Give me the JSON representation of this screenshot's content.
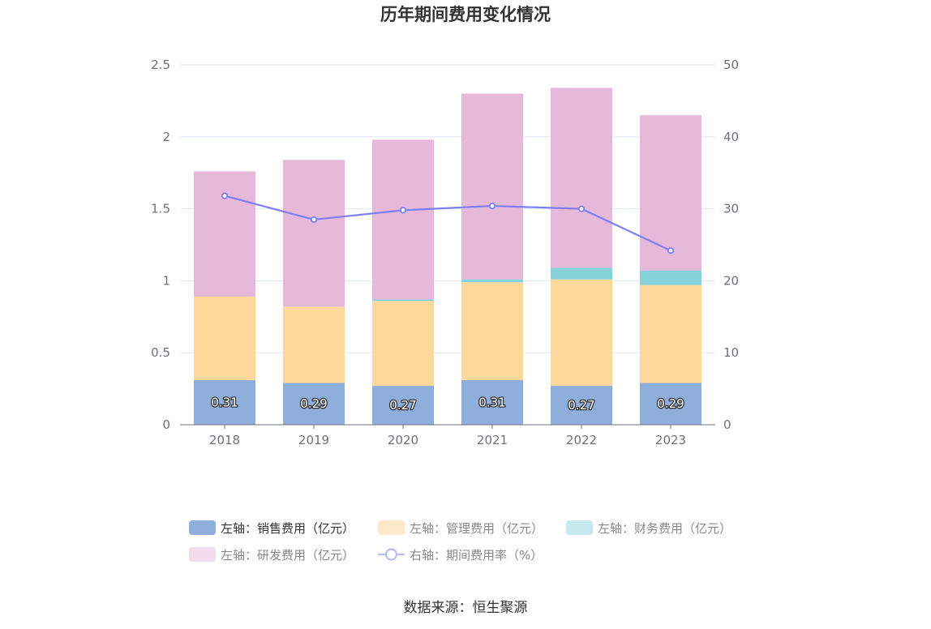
{
  "chart_data": {
    "type": "bar",
    "title": "历年期间费用变化情况",
    "categories": [
      "2018",
      "2019",
      "2020",
      "2021",
      "2022",
      "2023"
    ],
    "left_axis": {
      "ylim": [
        0,
        2.5
      ],
      "ticks": [
        "0",
        "0.5",
        "1",
        "1.5",
        "2",
        "2.5"
      ]
    },
    "right_axis": {
      "ylim": [
        0,
        50
      ],
      "ticks": [
        "0",
        "10",
        "20",
        "30",
        "40",
        "50"
      ]
    },
    "series": [
      {
        "name": "左轴：销售费用（亿元）",
        "type": "bar",
        "stack": true,
        "color": "#8eaedb",
        "values": [
          0.31,
          0.29,
          0.27,
          0.31,
          0.27,
          0.29
        ],
        "labels": [
          "0.31",
          "0.29",
          "0.27",
          "0.31",
          "0.27",
          "0.29"
        ]
      },
      {
        "name": "左轴：管理费用（亿元）",
        "type": "bar",
        "stack": true,
        "color": "#fed89b",
        "values": [
          0.58,
          0.53,
          0.59,
          0.68,
          0.74,
          0.68
        ]
      },
      {
        "name": "左轴：财务费用（亿元）",
        "type": "bar",
        "stack": true,
        "color": "#85d3d9",
        "values": [
          0.0,
          0.0,
          0.01,
          0.02,
          0.08,
          0.1
        ]
      },
      {
        "name": "左轴：研发费用（亿元）",
        "type": "bar",
        "stack": true,
        "color": "#e6b8da",
        "values": [
          0.87,
          1.02,
          1.11,
          1.29,
          1.25,
          1.08
        ]
      },
      {
        "name": "右轴：期间费用率（%）",
        "type": "line",
        "axis": "right",
        "color": "#7b80f3",
        "values": [
          31.8,
          28.5,
          29.8,
          30.4,
          30.0,
          24.2
        ]
      }
    ],
    "legend": {
      "items": [
        {
          "label": "左轴：销售费用（亿元）",
          "color": "#8eaedb",
          "kind": "bar",
          "dim": false
        },
        {
          "label": "左轴：管理费用（亿元）",
          "color": "#fde9c8",
          "kind": "bar",
          "dim": true
        },
        {
          "label": "左轴：财务费用（亿元）",
          "color": "#c4e8eb",
          "kind": "bar",
          "dim": true
        },
        {
          "label": "左轴：研发费用（亿元）",
          "color": "#f2dcec",
          "kind": "bar",
          "dim": true
        },
        {
          "label": "右轴：期间费用率（%）",
          "color": "#b9bcf6",
          "kind": "line",
          "dim": true
        }
      ],
      "position": "bottom"
    },
    "grid": true
  },
  "source_text": "数据来源：恒生聚源"
}
